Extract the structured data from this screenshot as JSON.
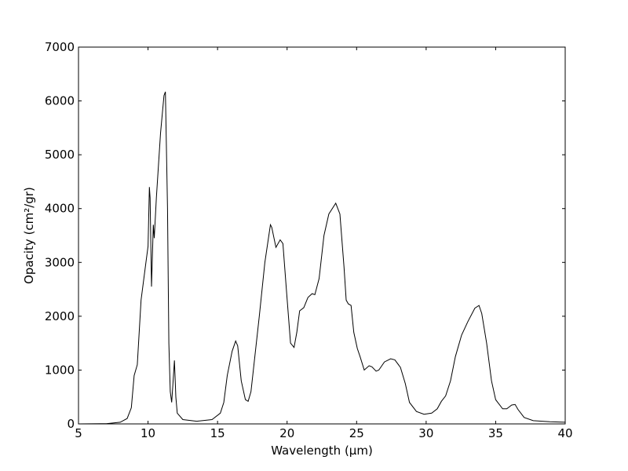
{
  "chart_data": {
    "type": "line",
    "xlabel": "Wavelength (μm)",
    "ylabel": "Opacity (cm²/gr)",
    "xlim": [
      5,
      40
    ],
    "ylim": [
      0,
      7000
    ],
    "xticks": [
      5,
      10,
      15,
      20,
      25,
      30,
      35,
      40
    ],
    "yticks": [
      0,
      1000,
      2000,
      3000,
      4000,
      5000,
      6000,
      7000
    ],
    "series": [
      {
        "color": "#000000",
        "x": [
          5,
          7,
          8,
          8.5,
          8.8,
          9.0,
          9.23,
          9.5,
          9.85,
          10.0,
          10.1,
          10.15,
          10.25,
          10.38,
          10.45,
          10.6,
          10.9,
          11.15,
          11.25,
          11.4,
          11.5,
          11.6,
          11.7,
          11.78,
          11.9,
          12.0,
          12.1,
          12.5,
          13.5,
          14.6,
          15.2,
          15.45,
          15.7,
          16.05,
          16.3,
          16.45,
          16.7,
          17.0,
          17.2,
          17.4,
          18.0,
          18.4,
          18.8,
          18.9,
          19.2,
          19.5,
          19.7,
          19.95,
          20.25,
          20.5,
          20.7,
          20.9,
          21.2,
          21.5,
          21.8,
          22.0,
          22.3,
          22.65,
          23.0,
          23.5,
          23.8,
          24.1,
          24.25,
          24.4,
          24.6,
          24.8,
          25.05,
          25.25,
          25.55,
          25.9,
          26.1,
          26.4,
          26.6,
          27.0,
          27.45,
          27.75,
          28.15,
          28.5,
          28.8,
          29.3,
          29.85,
          30.4,
          30.8,
          31.1,
          31.4,
          31.75,
          32.1,
          32.55,
          33.0,
          33.5,
          33.8,
          34.0,
          34.35,
          34.7,
          35.0,
          35.5,
          35.8,
          36.15,
          36.4,
          36.6,
          37.05,
          37.7,
          38.9,
          40
        ],
        "values": [
          0,
          5,
          30,
          100,
          300,
          900,
          1100,
          2300,
          3000,
          3300,
          4400,
          4200,
          2550,
          3700,
          3450,
          4200,
          5400,
          6100,
          6170,
          4000,
          1500,
          600,
          400,
          700,
          1180,
          500,
          200,
          80,
          50,
          80,
          200,
          400,
          900,
          1350,
          1540,
          1450,
          800,
          450,
          420,
          600,
          2000,
          3000,
          3700,
          3650,
          3280,
          3420,
          3350,
          2500,
          1500,
          1420,
          1700,
          2100,
          2160,
          2350,
          2420,
          2400,
          2700,
          3500,
          3900,
          4100,
          3900,
          2900,
          2300,
          2230,
          2200,
          1700,
          1400,
          1250,
          1000,
          1080,
          1060,
          980,
          1000,
          1150,
          1210,
          1190,
          1050,
          750,
          400,
          230,
          180,
          200,
          280,
          420,
          520,
          800,
          1250,
          1650,
          1900,
          2150,
          2200,
          2050,
          1500,
          800,
          450,
          280,
          280,
          350,
          360,
          270,
          120,
          60,
          40,
          30
        ]
      }
    ]
  }
}
